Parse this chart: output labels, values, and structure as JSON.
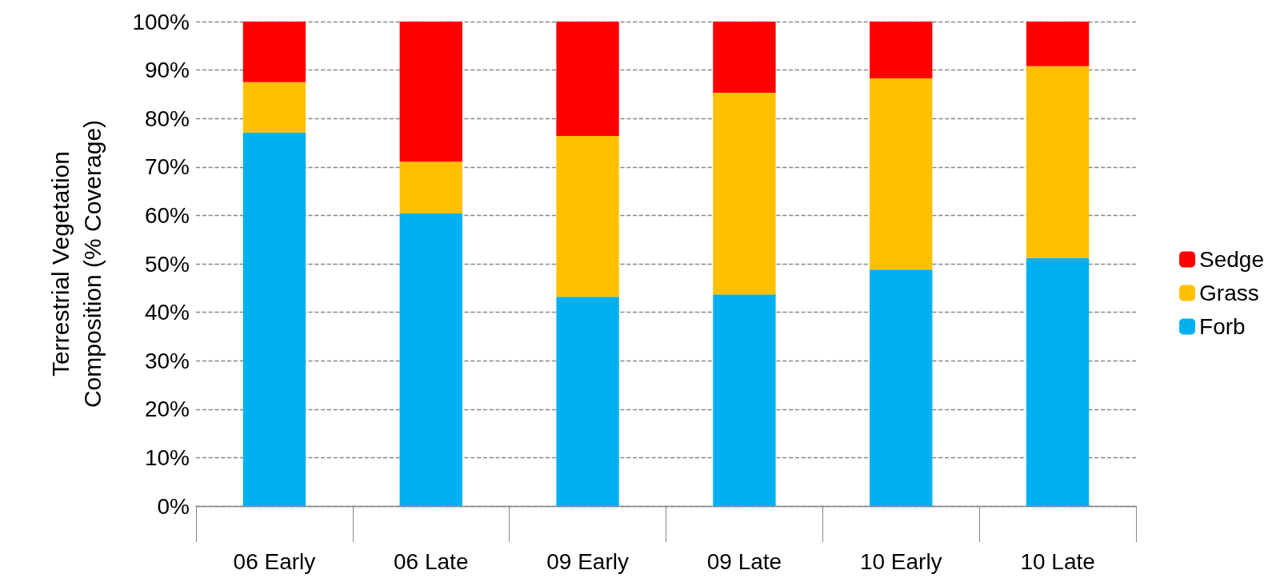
{
  "chart_data": {
    "type": "bar",
    "stacked": true,
    "ylabel": "Terrestrial Vegetation\nComposition (% Coverage)",
    "categories": [
      "06 Early",
      "06 Late",
      "09 Early",
      "09 Late",
      "10 Early",
      "10 Late"
    ],
    "series": [
      {
        "name": "Forb",
        "color": "#00b0f0",
        "values": [
          77.1,
          60.4,
          43.2,
          43.7,
          48.8,
          51.2
        ]
      },
      {
        "name": "Grass",
        "color": "#ffc000",
        "values": [
          10.4,
          10.7,
          33.2,
          41.6,
          39.5,
          39.6
        ]
      },
      {
        "name": "Sedge",
        "color": "#ff0000",
        "values": [
          12.5,
          28.9,
          23.6,
          14.7,
          11.7,
          9.2
        ]
      }
    ],
    "ylim": [
      0,
      100
    ],
    "yticks": [
      {
        "value": 0,
        "label": "0%"
      },
      {
        "value": 10,
        "label": "10%"
      },
      {
        "value": 20,
        "label": "20%"
      },
      {
        "value": 30,
        "label": "30%"
      },
      {
        "value": 40,
        "label": "40%"
      },
      {
        "value": 50,
        "label": "50%"
      },
      {
        "value": 60,
        "label": "60%"
      },
      {
        "value": 70,
        "label": "70%"
      },
      {
        "value": 80,
        "label": "80%"
      },
      {
        "value": 90,
        "label": "90%"
      },
      {
        "value": 100,
        "label": "100%"
      }
    ],
    "grid": "y",
    "legend": "right"
  }
}
